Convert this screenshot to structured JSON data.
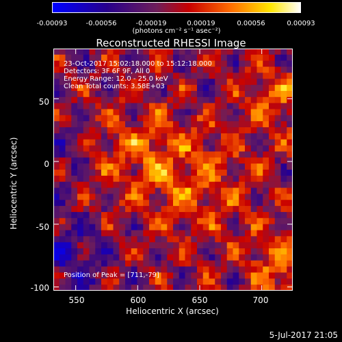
{
  "colorbar": {
    "ticks": [
      "-0.00093",
      "-0.00056",
      "-0.00019",
      "0.00019",
      "0.00056",
      "0.00093"
    ],
    "units": "(photons cm⁻² s⁻¹ asec⁻²)"
  },
  "plot": {
    "title": "Reconstructed RHESSI Image",
    "annotations": [
      "23-Oct-2017 15:02:18.000 to 15:12:18.000",
      "Detectors: 3F 6F 9F, All 0",
      "Energy Range: 12.0 - 25.0 keV",
      "Clean     Total counts: 3.58E+03"
    ],
    "peak_label": "Position of Peak = [711,-79]",
    "footer": "5-Jul-2017 21:05"
  },
  "chart_data": {
    "type": "heatmap",
    "title": "Reconstructed RHESSI Image",
    "xlabel": "Heliocentric X (arcsec)",
    "ylabel": "Heliocentric Y (arcsec)",
    "xlim": [
      532,
      725
    ],
    "ylim": [
      -103,
      90
    ],
    "x_ticks": [
      "550",
      "600",
      "650",
      "700"
    ],
    "y_ticks": [
      "50",
      "0",
      "-50",
      "-100"
    ],
    "color_range": [
      -0.00093,
      0.00093
    ],
    "colormap": "blue-purple-red-yellow-white",
    "peak": [
      711,
      -79
    ]
  }
}
